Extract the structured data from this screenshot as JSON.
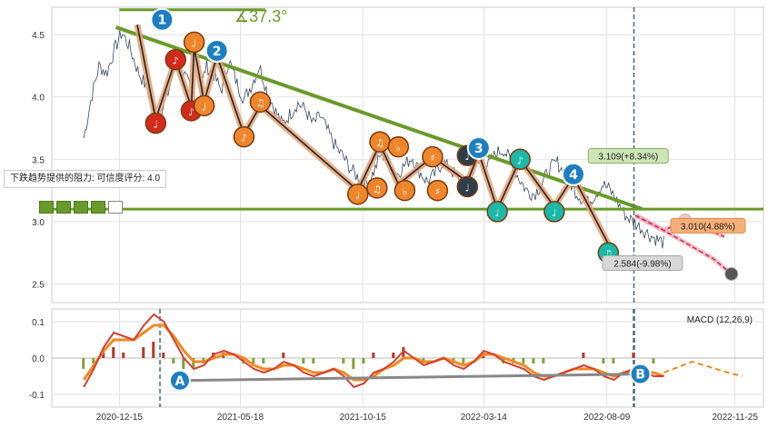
{
  "chart_data": [
    {
      "type": "line",
      "panel": "price",
      "ylim": [
        2.35,
        4.72
      ],
      "yticks": [
        "2.5",
        "3.0",
        "3.5",
        "4.0",
        "4.5"
      ],
      "ytick_values": [
        2.5,
        3.0,
        3.5,
        4.0,
        4.5
      ],
      "xticks": [
        "2020-12-15",
        "2021-05-18",
        "2021-10-15",
        "2022-03-14",
        "2022-08-09",
        "2022-11-25"
      ],
      "xtick_index": [
        0,
        1,
        2,
        3,
        4,
        5
      ],
      "series": [
        {
          "values": [
            3.67,
            4.0,
            4.25,
            4.19,
            4.38,
            4.52,
            4.4,
            4.22,
            4.1,
            3.95,
            3.84,
            4.02,
            4.28,
            4.2,
            4.06,
            3.95,
            4.25,
            4.18,
            4.05,
            4.3,
            4.12,
            3.98,
            4.1,
            4.25,
            4.05,
            3.9,
            3.78,
            3.86,
            3.95,
            3.9,
            3.78,
            3.85,
            3.72,
            3.6,
            3.52,
            3.42,
            3.35,
            3.3,
            3.4,
            3.55,
            3.48,
            3.38,
            3.45,
            3.52,
            3.4,
            3.32,
            3.38,
            3.48,
            3.42,
            3.35,
            3.3,
            3.42,
            3.48,
            3.45,
            3.55,
            3.58,
            3.48,
            3.35,
            3.25,
            3.22,
            3.3,
            3.42,
            3.48,
            3.38,
            3.28,
            3.2,
            3.15,
            3.22,
            3.3,
            3.25,
            3.15,
            3.05,
            3.0,
            2.95,
            2.9,
            2.86,
            2.83
          ]
        }
      ],
      "wave_labels": [
        {
          "label": "1",
          "x": 0.155,
          "y": 4.62
        },
        {
          "label": "2",
          "x": 0.232,
          "y": 4.37
        },
        {
          "label": "3",
          "x": 0.6,
          "y": 3.59
        },
        {
          "label": "4",
          "x": 0.733,
          "y": 3.38
        }
      ],
      "note_markers": [
        {
          "symbol": "♩",
          "x": 0.2,
          "y": 4.44,
          "color": "#f0862b"
        },
        {
          "symbol": "♪",
          "x": 0.174,
          "y": 4.3,
          "color": "#d32b1b"
        },
        {
          "symbol": "♪",
          "x": 0.196,
          "y": 3.89,
          "color": "#d32b1b"
        },
        {
          "symbol": "♩",
          "x": 0.214,
          "y": 3.93,
          "color": "#f0862b"
        },
        {
          "symbol": "♩",
          "x": 0.146,
          "y": 3.79,
          "color": "#d32b1b"
        },
        {
          "symbol": "♫",
          "x": 0.293,
          "y": 3.96,
          "color": "#f0862b"
        },
        {
          "symbol": "♪",
          "x": 0.27,
          "y": 3.68,
          "color": "#f0862b"
        },
        {
          "symbol": "♫",
          "x": 0.461,
          "y": 3.64,
          "color": "#f0862b"
        },
        {
          "symbol": "♭",
          "x": 0.487,
          "y": 3.6,
          "color": "#f0862b"
        },
        {
          "symbol": "♯",
          "x": 0.535,
          "y": 3.52,
          "color": "#f0862b"
        },
        {
          "symbol": "♩",
          "x": 0.584,
          "y": 3.53,
          "color": "#2f3c4a"
        },
        {
          "symbol": "♪",
          "x": 0.658,
          "y": 3.5,
          "color": "#1bb9a8"
        },
        {
          "symbol": "♩",
          "x": 0.626,
          "y": 3.08,
          "color": "#1bb9a8"
        },
        {
          "symbol": "♩",
          "x": 0.706,
          "y": 3.08,
          "color": "#1bb9a8"
        },
        {
          "symbol": "♩",
          "x": 0.584,
          "y": 3.28,
          "color": "#2f3c4a"
        },
        {
          "symbol": "♩",
          "x": 0.43,
          "y": 3.22,
          "color": "#f0862b"
        },
        {
          "symbol": "♫",
          "x": 0.457,
          "y": 3.27,
          "color": "#f0862b"
        },
        {
          "symbol": "♭",
          "x": 0.496,
          "y": 3.25,
          "color": "#f0862b"
        },
        {
          "symbol": "♯",
          "x": 0.542,
          "y": 3.25,
          "color": "#f0862b"
        },
        {
          "symbol": "♫",
          "x": 0.782,
          "y": 2.75,
          "color": "#1bb9a8"
        }
      ],
      "angle_label": "∡37.3°",
      "resistance_label": "下跌趋势提供的阻力: 可信度评分: 4.0",
      "resistance_level": 3.1,
      "annotations": [
        {
          "text": "3.109(+8.34%)",
          "x": 0.81,
          "y": 3.52
        },
        {
          "text": "3.010(4.88%)",
          "x": 0.922,
          "y": 2.96
        },
        {
          "text": "2.584(-9.98%)",
          "x": 0.83,
          "y": 2.66
        }
      ],
      "grid": true,
      "colors": {
        "line": "#3a4a5e",
        "trend": "#6a9a2a",
        "wave": "#e8a070"
      }
    },
    {
      "type": "line",
      "panel": "macd",
      "title": "MACD (12,26,9)",
      "ylim": [
        -0.135,
        0.135
      ],
      "yticks": [
        "0.1",
        "0.0",
        "-0.1"
      ],
      "ytick_values": [
        0.1,
        0.0,
        -0.1
      ],
      "series": [
        {
          "values": [
            -0.08,
            -0.03,
            0.03,
            0.07,
            0.06,
            0.05,
            0.09,
            0.12,
            0.1,
            0.05,
            0.0,
            -0.03,
            -0.02,
            0.01,
            0.02,
            0.01,
            -0.01,
            -0.03,
            -0.04,
            -0.03,
            -0.01,
            -0.02,
            -0.04,
            -0.05,
            -0.04,
            -0.03,
            -0.05,
            -0.08,
            -0.07,
            -0.04,
            -0.03,
            -0.01,
            0.02,
            0.0,
            -0.02,
            -0.01,
            0.0,
            -0.02,
            -0.03,
            -0.01,
            0.02,
            0.01,
            -0.01,
            -0.02,
            -0.03,
            -0.05,
            -0.06,
            -0.05,
            -0.04,
            -0.03,
            -0.02,
            -0.03,
            -0.05,
            -0.06,
            -0.04,
            -0.03,
            -0.04,
            -0.05,
            -0.05
          ]
        },
        {
          "values": [
            -0.06,
            -0.02,
            0.02,
            0.05,
            0.05,
            0.05,
            0.07,
            0.09,
            0.09,
            0.06,
            0.02,
            -0.01,
            -0.01,
            0.0,
            0.01,
            0.01,
            0.0,
            -0.02,
            -0.03,
            -0.03,
            -0.02,
            -0.02,
            -0.03,
            -0.04,
            -0.04,
            -0.03,
            -0.04,
            -0.06,
            -0.06,
            -0.05,
            -0.03,
            -0.02,
            0.0,
            0.0,
            -0.01,
            -0.01,
            0.0,
            -0.01,
            -0.02,
            -0.01,
            0.01,
            0.01,
            0.0,
            -0.01,
            -0.02,
            -0.04,
            -0.05,
            -0.05,
            -0.04,
            -0.03,
            -0.03,
            -0.03,
            -0.04,
            -0.05,
            -0.04,
            -0.04,
            -0.04,
            -0.04,
            -0.05
          ]
        }
      ],
      "divergence_labels": [
        {
          "label": "A",
          "x": 0.18,
          "y": -0.062
        },
        {
          "label": "B",
          "x": 0.827,
          "y": -0.044
        }
      ],
      "grid": true,
      "colors": {
        "dif": "#d44030",
        "dea": "#f08a20",
        "bar_pos": "#b5372a",
        "bar_neg": "#7fa33a"
      }
    }
  ],
  "labels": {
    "wave_colors": {
      "wave": "#1c7fc2"
    },
    "footer_icons": [
      "chart-icon",
      "chart-icon",
      "chart-icon",
      "chart-icon",
      "table-icon"
    ]
  }
}
